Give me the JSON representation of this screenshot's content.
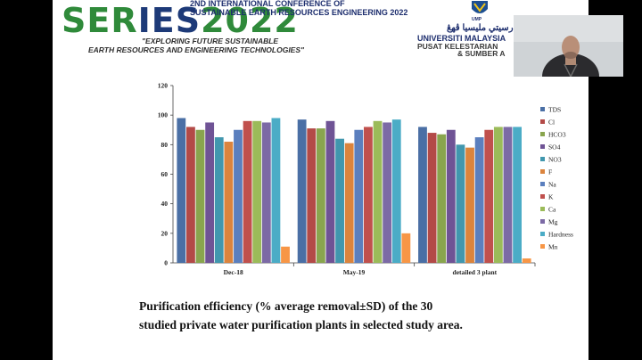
{
  "header": {
    "logo_word_left": "SER",
    "logo_word_mid": "IES",
    "logo_word_year": "2022",
    "conference_line1": "2ND INTERNATIONAL CONFERENCE OF",
    "conference_line2": "SUSTAINABLE EARTH RESOURCES ENGINEERING 2022",
    "tagline_line1": "\"EXPLORING FUTURE SUSTAINABLE",
    "tagline_line2": "EARTH RESOURCES AND ENGINEERING TECHNOLOGIES\"",
    "ump_label": "UMP",
    "ump_arabic": "ونيۏرسيتي مليسيا ڤهڠ",
    "ump_name": "UNIVERSITI MALAYSIA",
    "ump_centre": "PUSAT KELESTARIAN",
    "ump_centre2": "& SUMBER A"
  },
  "caption": {
    "line1": "Purification efficiency (% average removal±SD) of the 30",
    "line2": "studied private water purification plants in selected study area."
  },
  "colors": {
    "TDS": "#4a6fa5",
    "Cl": "#b34a47",
    "HCO3": "#89a54e",
    "SO4": "#6f5395",
    "NO3": "#4197ae",
    "F": "#db843d",
    "Na": "#5b7fbe",
    "K": "#c0504d",
    "Ca": "#9bbb59",
    "Mg": "#7c6aa5",
    "Hardness": "#4bacc6",
    "Mn": "#f79646"
  },
  "chart_data": {
    "type": "bar",
    "categories": [
      "Dec-18",
      "May-19",
      "detailed 3 plant"
    ],
    "ylim": [
      0,
      120
    ],
    "yticks": [
      0,
      20,
      40,
      60,
      80,
      100,
      120
    ],
    "legend_position": "right",
    "grid": false,
    "series": [
      {
        "name": "TDS",
        "values": [
          98,
          97,
          92
        ]
      },
      {
        "name": "Cl",
        "values": [
          92,
          91,
          88
        ]
      },
      {
        "name": "HCO3",
        "values": [
          90,
          91,
          87
        ]
      },
      {
        "name": "SO4",
        "values": [
          95,
          96,
          90
        ]
      },
      {
        "name": "NO3",
        "values": [
          85,
          84,
          80
        ]
      },
      {
        "name": "F",
        "values": [
          82,
          81,
          78
        ]
      },
      {
        "name": "Na",
        "values": [
          90,
          90,
          85
        ]
      },
      {
        "name": "K",
        "values": [
          96,
          92,
          90
        ]
      },
      {
        "name": "Ca",
        "values": [
          96,
          96,
          92
        ]
      },
      {
        "name": "Mg",
        "values": [
          95,
          95,
          92
        ]
      },
      {
        "name": "Hardness",
        "values": [
          98,
          97,
          92
        ]
      },
      {
        "name": "Mn",
        "values": [
          11,
          20,
          3
        ]
      }
    ]
  }
}
